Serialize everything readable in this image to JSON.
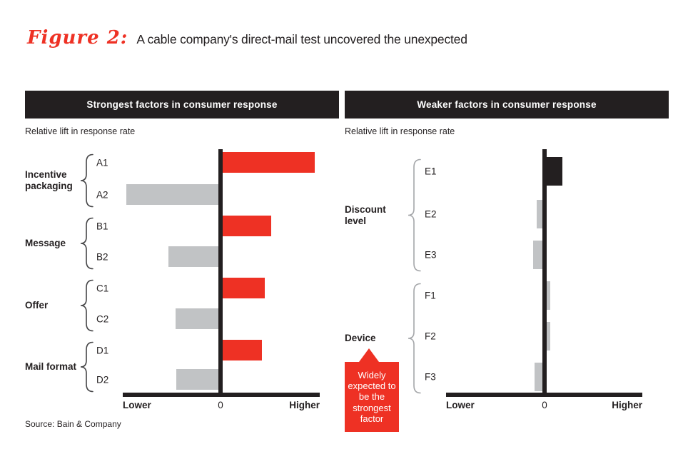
{
  "figure": {
    "label": "Figure 2:",
    "title": "A cable company's direct-mail test uncovered the unexpected"
  },
  "source": "Source: Bain & Company",
  "colors": {
    "accent_red": "#EE3124",
    "bar_gray": "#C1C3C5",
    "bar_black": "#231F20",
    "header_bg": "#231F20",
    "header_text": "#FFFFFF"
  },
  "chart_data": [
    {
      "type": "bar",
      "orientation": "horizontal",
      "panel_title": "Strongest factors in consumer response",
      "axis_note": "Relative lift in response rate",
      "x_ticks": [
        "Lower",
        "0",
        "Higher"
      ],
      "xlim": [
        -1,
        1
      ],
      "value_note": "values are relative lift, estimated as fraction of axis half-width; axis unlabeled",
      "groups": [
        {
          "name": "Incentive packaging",
          "bars": [
            {
              "label": "A1",
              "value": 0.96,
              "color": "#EE3124"
            },
            {
              "label": "A2",
              "value": -0.96,
              "color": "#C1C3C5"
            }
          ]
        },
        {
          "name": "Message",
          "bars": [
            {
              "label": "B1",
              "value": 0.52,
              "color": "#EE3124"
            },
            {
              "label": "B2",
              "value": -0.53,
              "color": "#C1C3C5"
            }
          ]
        },
        {
          "name": "Offer",
          "bars": [
            {
              "label": "C1",
              "value": 0.45,
              "color": "#EE3124"
            },
            {
              "label": "C2",
              "value": -0.46,
              "color": "#C1C3C5"
            }
          ]
        },
        {
          "name": "Mail format",
          "bars": [
            {
              "label": "D1",
              "value": 0.42,
              "color": "#EE3124"
            },
            {
              "label": "D2",
              "value": -0.45,
              "color": "#C1C3C5"
            }
          ]
        }
      ]
    },
    {
      "type": "bar",
      "orientation": "horizontal",
      "panel_title": "Weaker factors in consumer response",
      "axis_note": "Relative lift in response rate",
      "x_ticks": [
        "Lower",
        "0",
        "Higher"
      ],
      "xlim": [
        -1,
        1
      ],
      "groups": [
        {
          "name": "Discount level",
          "bars": [
            {
              "label": "E1",
              "value": 0.18,
              "color": "#231F20"
            },
            {
              "label": "E2",
              "value": -0.08,
              "color": "#C1C3C5"
            },
            {
              "label": "E3",
              "value": -0.12,
              "color": "#C1C3C5"
            }
          ]
        },
        {
          "name": "Device",
          "bars": [
            {
              "label": "F1",
              "value": 0.06,
              "color": "#C1C3C5"
            },
            {
              "label": "F2",
              "value": 0.06,
              "color": "#C1C3C5"
            },
            {
              "label": "F3",
              "value": -0.1,
              "color": "#C1C3C5"
            }
          ]
        }
      ],
      "annotation": {
        "text": "Widely expected to be the strongest factor",
        "target_group": "Device",
        "bg": "#EE3124",
        "text_color": "#FFFFFF"
      }
    }
  ]
}
